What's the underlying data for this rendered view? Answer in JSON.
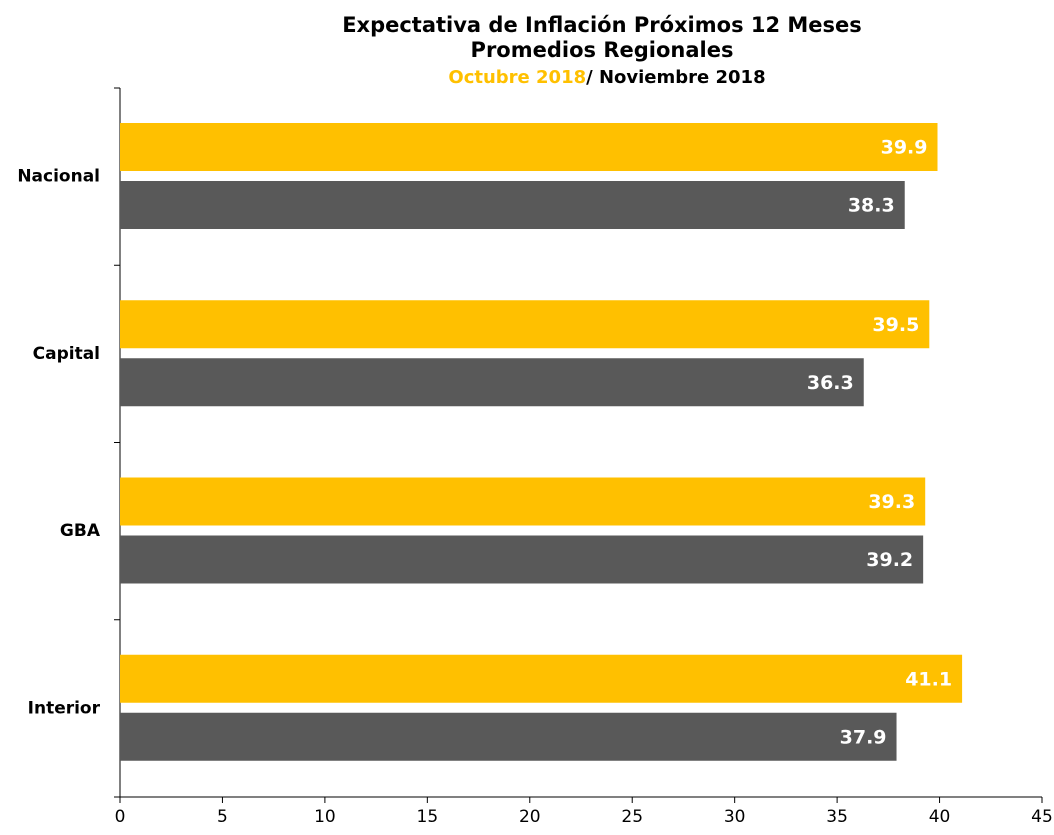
{
  "chart_data": {
    "type": "bar",
    "orientation": "horizontal",
    "title": "Expectativa de Inflación Próximos 12 Meses",
    "subtitle": "Promedios Regionales",
    "legend_separator": "/ ",
    "categories": [
      "Nacional",
      "Capital",
      "GBA",
      "Interior"
    ],
    "series": [
      {
        "name": "Octubre 2018",
        "color": "#ffc000",
        "values": [
          39.9,
          39.5,
          39.3,
          41.1
        ]
      },
      {
        "name": "Noviembre 2018",
        "color": "#595959",
        "values": [
          38.3,
          36.3,
          39.2,
          37.9
        ]
      }
    ],
    "xlim": [
      0,
      45
    ],
    "xticks": [
      0,
      5,
      10,
      15,
      20,
      25,
      30,
      35,
      40,
      45
    ],
    "grid": false
  }
}
